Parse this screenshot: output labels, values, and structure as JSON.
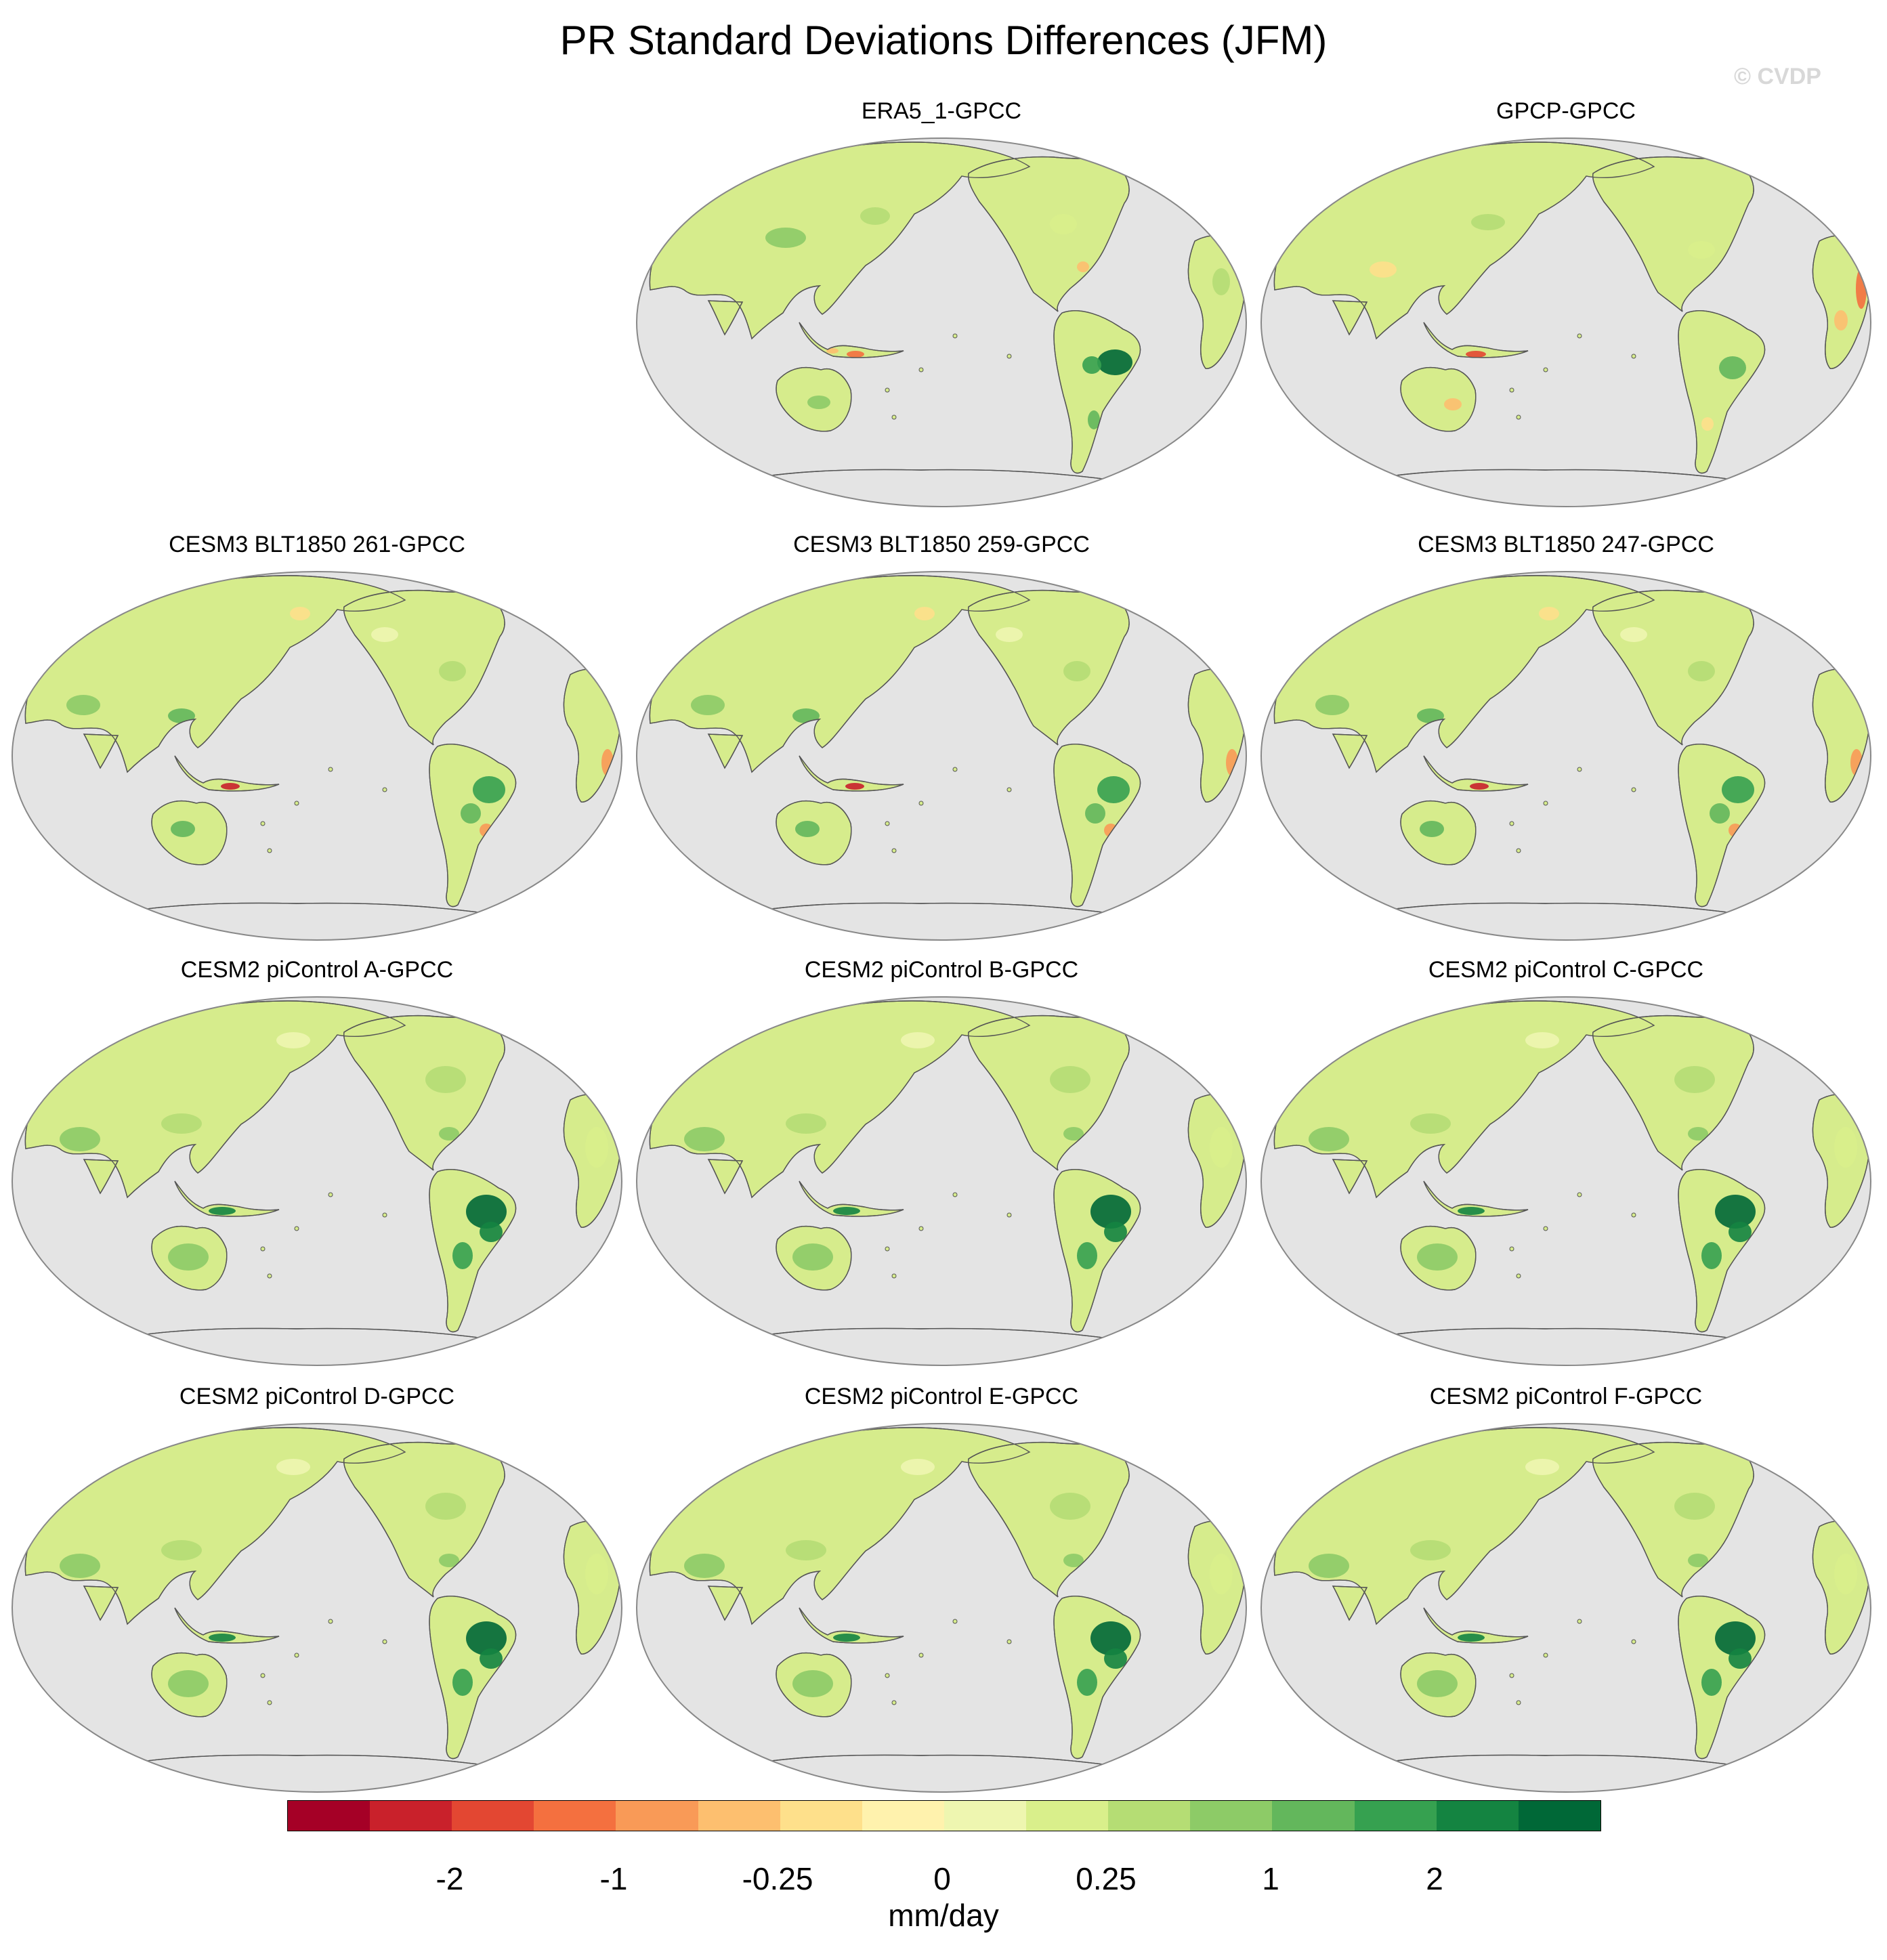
{
  "title": "PR Standard Deviations Differences (JFM)",
  "watermark": "© CVDP",
  "panels": [
    {
      "label": "ERA5_1-GPCC",
      "variant": 0
    },
    {
      "label": "GPCP-GPCC",
      "variant": 1
    },
    {
      "label": "CESM3 BLT1850 261-GPCC",
      "variant": 2
    },
    {
      "label": "CESM3 BLT1850 259-GPCC",
      "variant": 2
    },
    {
      "label": "CESM3 BLT1850 247-GPCC",
      "variant": 2
    },
    {
      "label": "CESM2 piControl A-GPCC",
      "variant": 3
    },
    {
      "label": "CESM2 piControl B-GPCC",
      "variant": 3
    },
    {
      "label": "CESM2 piControl C-GPCC",
      "variant": 3
    },
    {
      "label": "CESM2 piControl D-GPCC",
      "variant": 3
    },
    {
      "label": "CESM2 piControl E-GPCC",
      "variant": 3
    },
    {
      "label": "CESM2 piControl F-GPCC",
      "variant": 3
    }
  ],
  "colorbar": {
    "unit": "mm/day",
    "ticks": [
      "-2",
      "-1",
      "-0.25",
      "0",
      "0.25",
      "1",
      "2"
    ],
    "colors": [
      "#a50026",
      "#c9212b",
      "#e34732",
      "#f4703f",
      "#f99a57",
      "#fdbf6f",
      "#fee08b",
      "#fff2ad",
      "#eef6b0",
      "#d9ef8b",
      "#b5dd74",
      "#8dcb67",
      "#63b75c",
      "#36a150",
      "#148441",
      "#006837"
    ]
  },
  "map_style": {
    "ocean": "#e4e4e4",
    "outline": "#888888",
    "coast": "#555555"
  }
}
